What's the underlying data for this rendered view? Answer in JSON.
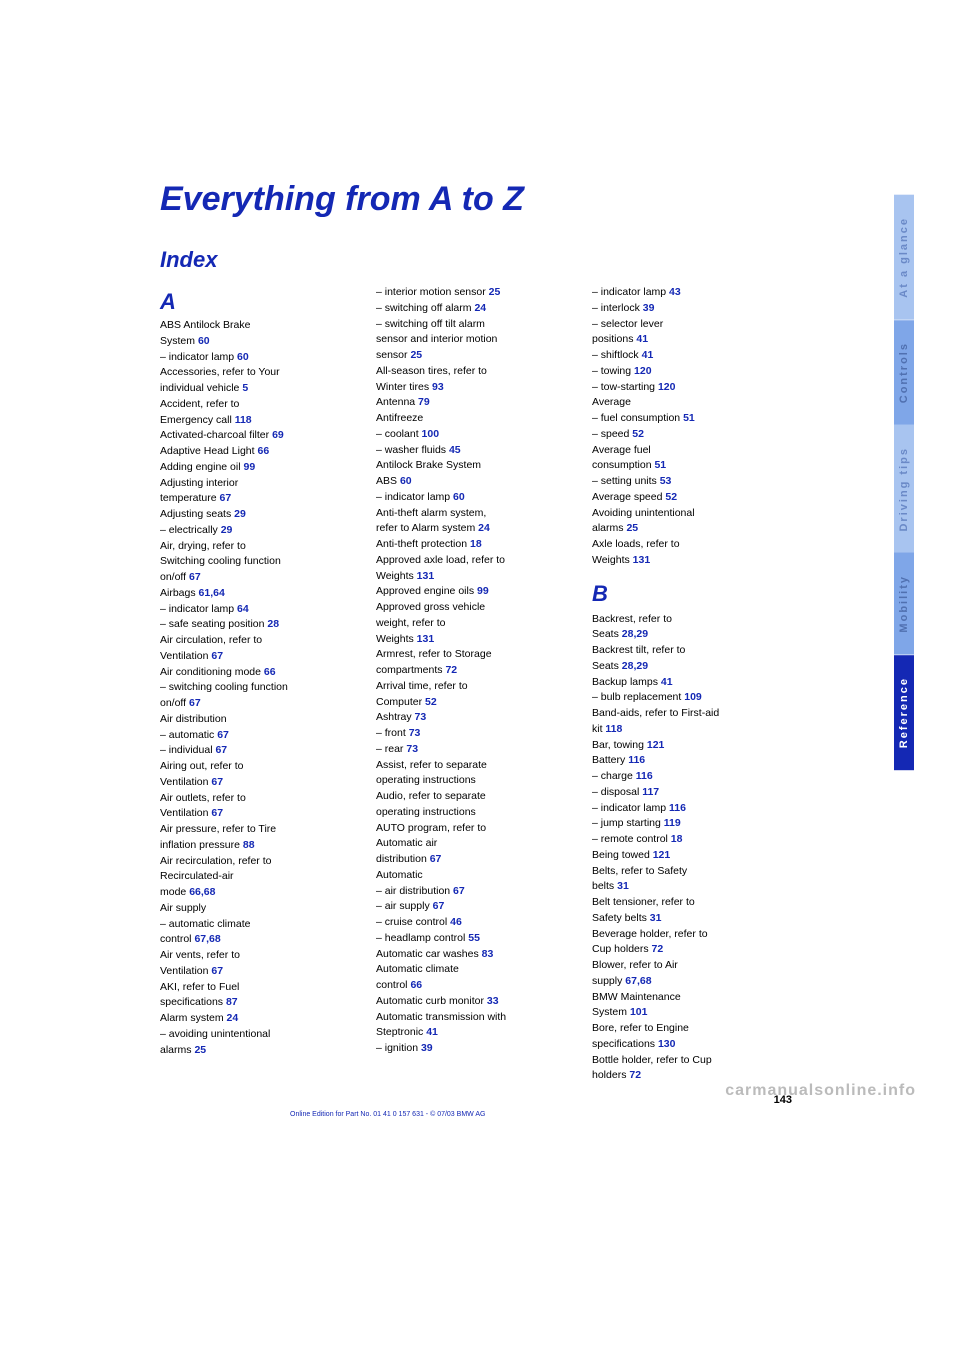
{
  "title": "Everything from A to Z",
  "subtitle": "Index",
  "letterA": "A",
  "letterB": "B",
  "tabs": {
    "t1": "At a glance",
    "t2": "Controls",
    "t3": "Driving tips",
    "t4": "Mobility",
    "t5": "Reference"
  },
  "pageNumber": "143",
  "footer": "Online Edition for Part No. 01 41 0 157 631 - © 07/03 BMW AG",
  "watermark": "carmanualsonline.info",
  "col1": [
    {
      "t": "ABS Antilock Brake"
    },
    {
      "t": "System",
      "k": 1,
      "a": "60"
    },
    {
      "t": "– indicator lamp",
      "k": 1,
      "a": "60"
    },
    {
      "t": "Accessories, refer to Your"
    },
    {
      "t": "individual vehicle",
      "k": 1,
      "a": "5"
    },
    {
      "t": "Accident, refer to"
    },
    {
      "t": "Emergency call",
      "k": 1,
      "a": "118"
    },
    {
      "t": "Activated-charcoal filter",
      "k": 1,
      "a": "69"
    },
    {
      "t": "Adaptive Head Light",
      "k": 1,
      "a": "66"
    },
    {
      "t": "Adding engine oil",
      "k": 1,
      "a": "99"
    },
    {
      "t": "Adjusting interior"
    },
    {
      "t": "temperature",
      "k": 1,
      "a": "67"
    },
    {
      "t": "Adjusting seats",
      "k": 1,
      "a": "29"
    },
    {
      "t": "– electrically",
      "k": 1,
      "a": "29"
    },
    {
      "t": "Air, drying, refer to"
    },
    {
      "t": "Switching cooling function"
    },
    {
      "t": "on/off",
      "k": 1,
      "a": "67"
    },
    {
      "t": "Airbags",
      "k": 1,
      "a": "61,64"
    },
    {
      "t": "– indicator lamp",
      "k": 1,
      "a": "64"
    },
    {
      "t": "– safe seating position",
      "k": 1,
      "a": "28"
    },
    {
      "t": "Air circulation, refer to"
    },
    {
      "t": "Ventilation",
      "k": 1,
      "a": "67"
    },
    {
      "t": "Air conditioning mode",
      "k": 1,
      "a": "66"
    },
    {
      "t": "– switching cooling function"
    },
    {
      "t": "on/off",
      "k": 1,
      "a": "67"
    },
    {
      "t": "Air distribution",
      "k": 1
    },
    {
      "t": "– automatic",
      "k": 1,
      "a": "67"
    },
    {
      "t": "– individual",
      "k": 1,
      "a": "67"
    },
    {
      "t": "Airing out, refer to"
    },
    {
      "t": "Ventilation",
      "k": 1,
      "a": "67"
    },
    {
      "t": "Air outlets, refer to"
    },
    {
      "t": "Ventilation",
      "k": 1,
      "a": "67"
    },
    {
      "t": "Air pressure, refer to Tire"
    },
    {
      "t": "inflation pressure",
      "k": 1,
      "a": "88"
    },
    {
      "t": "Air recirculation, refer to"
    },
    {
      "t": "Recirculated-air"
    },
    {
      "t": "mode",
      "k": 1,
      "a": "66,68"
    },
    {
      "t": "Air supply",
      "k": 1
    },
    {
      "t": "– automatic climate"
    },
    {
      "t": "control",
      "k": 1,
      "a": "67,68"
    },
    {
      "t": "Air vents, refer to"
    },
    {
      "t": "Ventilation",
      "k": 1,
      "a": "67"
    },
    {
      "t": "AKI, refer to Fuel"
    },
    {
      "t": "specifications",
      "k": 1,
      "a": "87"
    },
    {
      "t": "Alarm system",
      "k": 1,
      "a": "24"
    },
    {
      "t": "– avoiding unintentional"
    },
    {
      "t": "alarms",
      "k": 1,
      "a": "25"
    }
  ],
  "col2": [
    {
      "t": "– interior motion sensor",
      "k": 1,
      "a": "25"
    },
    {
      "t": "– switching off alarm",
      "k": 1,
      "a": "24"
    },
    {
      "t": "– switching off tilt alarm"
    },
    {
      "t": "sensor and interior motion"
    },
    {
      "t": "sensor",
      "k": 1,
      "a": "25"
    },
    {
      "t": "All-season tires, refer to"
    },
    {
      "t": "Winter tires",
      "k": 1,
      "a": "93"
    },
    {
      "t": "Antenna",
      "k": 1,
      "a": "79"
    },
    {
      "t": "Antifreeze",
      "k": 1
    },
    {
      "t": "– coolant",
      "k": 1,
      "a": "100"
    },
    {
      "t": "– washer fluids",
      "k": 1,
      "a": "45"
    },
    {
      "t": "Antilock Brake System"
    },
    {
      "t": "ABS",
      "k": 1,
      "a": "60"
    },
    {
      "t": "– indicator lamp",
      "k": 1,
      "a": "60"
    },
    {
      "t": "Anti-theft alarm system,"
    },
    {
      "t": "refer to Alarm system",
      "k": 1,
      "a": "24"
    },
    {
      "t": "Anti-theft protection",
      "k": 1,
      "a": "18"
    },
    {
      "t": "Approved axle load, refer to"
    },
    {
      "t": "Weights",
      "k": 1,
      "a": "131"
    },
    {
      "t": "Approved engine oils",
      "k": 1,
      "a": "99"
    },
    {
      "t": "Approved gross vehicle"
    },
    {
      "t": "weight, refer to"
    },
    {
      "t": "Weights",
      "k": 1,
      "a": "131"
    },
    {
      "t": "Armrest, refer to Storage"
    },
    {
      "t": "compartments",
      "k": 1,
      "a": "72"
    },
    {
      "t": "Arrival time, refer to"
    },
    {
      "t": "Computer",
      "k": 1,
      "a": "52"
    },
    {
      "t": "Ashtray",
      "k": 1,
      "a": "73"
    },
    {
      "t": "– front",
      "k": 1,
      "a": "73"
    },
    {
      "t": "– rear",
      "k": 1,
      "a": "73"
    },
    {
      "t": "Assist, refer to separate"
    },
    {
      "t": "operating instructions"
    },
    {
      "t": "Audio, refer to separate"
    },
    {
      "t": "operating instructions"
    },
    {
      "t": "AUTO program, refer to"
    },
    {
      "t": "Automatic air"
    },
    {
      "t": "distribution",
      "k": 1,
      "a": "67"
    },
    {
      "t": "Automatic",
      "k": 1
    },
    {
      "t": "– air distribution",
      "k": 1,
      "a": "67"
    },
    {
      "t": "– air supply",
      "k": 1,
      "a": "67"
    },
    {
      "t": "– cruise control",
      "k": 1,
      "a": "46"
    },
    {
      "t": "– headlamp control",
      "k": 1,
      "a": "55"
    },
    {
      "t": "Automatic car washes",
      "k": 1,
      "a": "83"
    },
    {
      "t": "Automatic climate"
    },
    {
      "t": "control",
      "k": 1,
      "a": "66"
    },
    {
      "t": "Automatic curb monitor",
      "k": 1,
      "a": "33"
    },
    {
      "t": "Automatic transmission with"
    },
    {
      "t": "Steptronic",
      "k": 1,
      "a": "41"
    },
    {
      "t": "– ignition",
      "k": 1,
      "a": "39"
    }
  ],
  "col3": [
    {
      "t": "– indicator lamp",
      "k": 1,
      "a": "43"
    },
    {
      "t": "– interlock",
      "k": 1,
      "a": "39"
    },
    {
      "t": "– selector lever"
    },
    {
      "t": "positions",
      "k": 1,
      "a": "41"
    },
    {
      "t": "– shiftlock",
      "k": 1,
      "a": "41"
    },
    {
      "t": "– towing",
      "k": 1,
      "a": "120"
    },
    {
      "t": "– tow-starting",
      "k": 1,
      "a": "120"
    },
    {
      "t": "Average"
    },
    {
      "t": "– fuel consumption",
      "k": 1,
      "a": "51"
    },
    {
      "t": "– speed",
      "k": 1,
      "a": "52"
    },
    {
      "t": "Average fuel"
    },
    {
      "t": "consumption",
      "k": 1,
      "a": "51"
    },
    {
      "t": "– setting units",
      "k": 1,
      "a": "53"
    },
    {
      "t": "Average speed",
      "k": 1,
      "a": "52"
    },
    {
      "t": "Avoiding unintentional"
    },
    {
      "t": "alarms",
      "k": 1,
      "a": "25"
    },
    {
      "t": "Axle loads, refer to"
    },
    {
      "t": "Weights",
      "k": 1,
      "a": "131"
    },
    {
      "t": "__LETTER_B__"
    },
    {
      "t": "Backrest, refer to"
    },
    {
      "t": "Seats",
      "k": 1,
      "a": "28,29"
    },
    {
      "t": "Backrest tilt, refer to"
    },
    {
      "t": "Seats",
      "k": 1,
      "a": "28,29"
    },
    {
      "t": "Backup lamps",
      "k": 1,
      "a": "41"
    },
    {
      "t": "– bulb replacement",
      "k": 1,
      "a": "109"
    },
    {
      "t": "Band-aids, refer to First-aid"
    },
    {
      "t": "kit",
      "k": 1,
      "a": "118"
    },
    {
      "t": "Bar, towing",
      "k": 1,
      "a": "121"
    },
    {
      "t": "Battery",
      "k": 1,
      "a": "116"
    },
    {
      "t": "– charge",
      "k": 1,
      "a": "116"
    },
    {
      "t": "– disposal",
      "k": 1,
      "a": "117"
    },
    {
      "t": "– indicator lamp",
      "k": 1,
      "a": "116"
    },
    {
      "t": "– jump starting",
      "k": 1,
      "a": "119"
    },
    {
      "t": "– remote control",
      "k": 1,
      "a": "18"
    },
    {
      "t": "Being towed",
      "k": 1,
      "a": "121"
    },
    {
      "t": "Belts, refer to Safety"
    },
    {
      "t": "belts",
      "k": 1,
      "a": "31"
    },
    {
      "t": "Belt tensioner, refer to"
    },
    {
      "t": "Safety belts",
      "k": 1,
      "a": "31"
    },
    {
      "t": "Beverage holder, refer to"
    },
    {
      "t": "Cup holders",
      "k": 1,
      "a": "72"
    },
    {
      "t": "Blower, refer to Air"
    },
    {
      "t": "supply",
      "k": 1,
      "a": "67,68"
    },
    {
      "t": "BMW Maintenance"
    },
    {
      "t": "System",
      "k": 1,
      "a": "101"
    },
    {
      "t": "Bore, refer to Engine"
    },
    {
      "t": "specifications",
      "k": 1,
      "a": "130"
    },
    {
      "t": "Bottle holder, refer to Cup"
    },
    {
      "t": "holders",
      "k": 1,
      "a": "72"
    }
  ]
}
